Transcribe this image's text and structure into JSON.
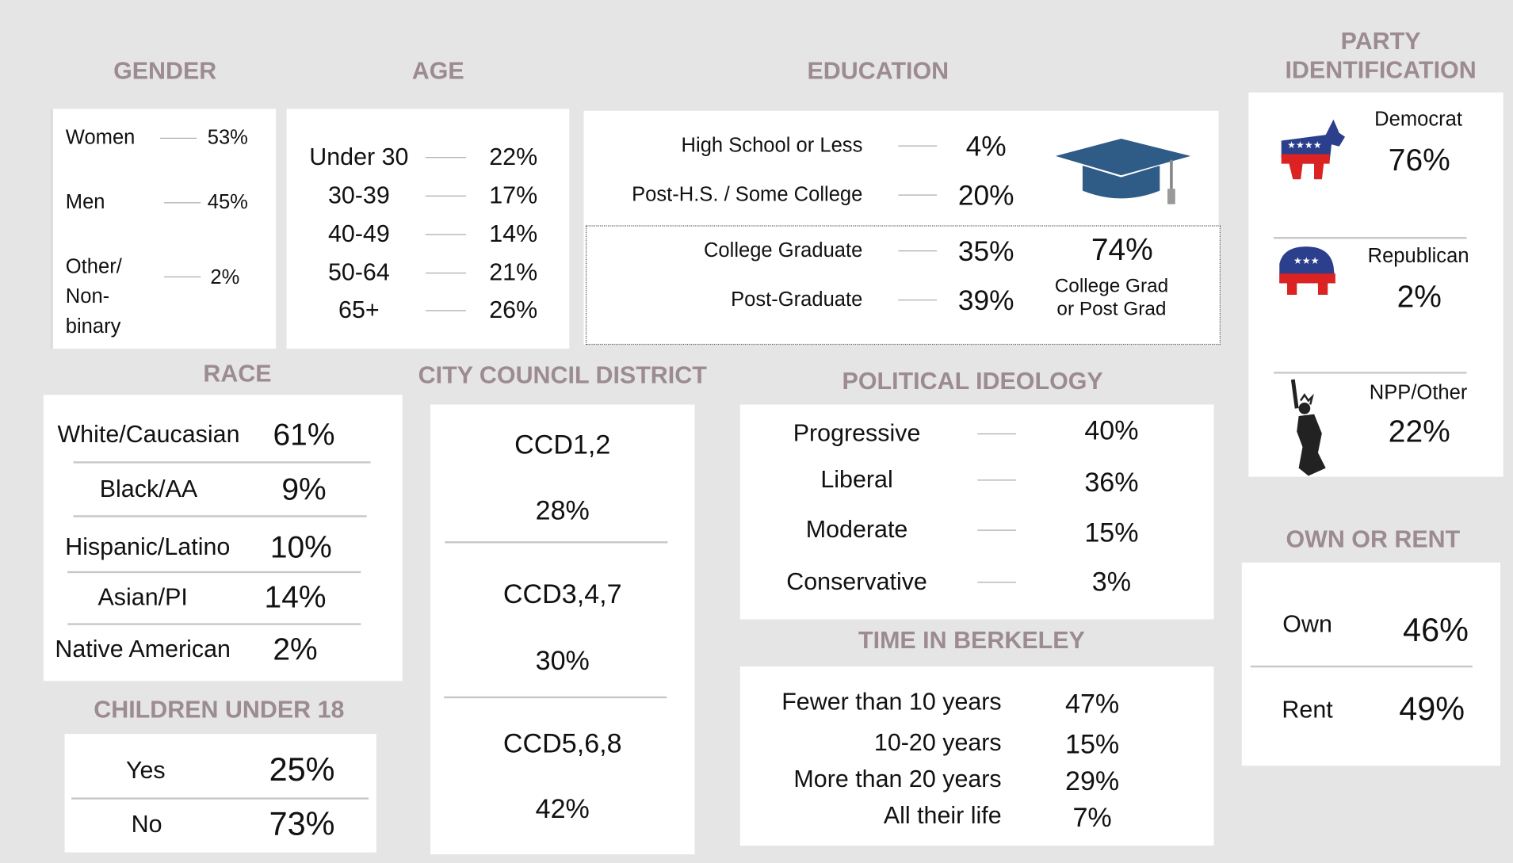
{
  "gender": {
    "title": "GENDER",
    "rows": [
      {
        "label": "Women",
        "value": "53%"
      },
      {
        "label": "Men",
        "value": "45%"
      },
      {
        "label": "Other/ Non-binary",
        "value": "2%"
      }
    ]
  },
  "age": {
    "title": "AGE",
    "rows": [
      {
        "label": "Under 30",
        "value": "22%"
      },
      {
        "label": "30-39",
        "value": "17%"
      },
      {
        "label": "40-49",
        "value": "14%"
      },
      {
        "label": "50-64",
        "value": "21%"
      },
      {
        "label": "65+",
        "value": "26%"
      }
    ]
  },
  "education": {
    "title": "EDUCATION",
    "rows": [
      {
        "label": "High School or Less",
        "value": "4%"
      },
      {
        "label": "Post-H.S. / Some College",
        "value": "20%"
      },
      {
        "label": "College Graduate",
        "value": "35%"
      },
      {
        "label": "Post-Graduate",
        "value": "39%"
      }
    ],
    "combined": {
      "value": "74%",
      "label": "College Grad or Post Grad"
    }
  },
  "party": {
    "title": "PARTY IDENTIFICATION",
    "rows": [
      {
        "label": "Democrat",
        "value": "76%"
      },
      {
        "label": "Republican",
        "value": "2%"
      },
      {
        "label": "NPP/Other",
        "value": "22%"
      }
    ]
  },
  "race": {
    "title": "RACE",
    "rows": [
      {
        "label": "White/Caucasian",
        "value": "61%"
      },
      {
        "label": "Black/AA",
        "value": "9%"
      },
      {
        "label": "Hispanic/Latino",
        "value": "10%"
      },
      {
        "label": "Asian/PI",
        "value": "14%"
      },
      {
        "label": "Native American",
        "value": "2%"
      }
    ]
  },
  "district": {
    "title": "CITY COUNCIL DISTRICT",
    "rows": [
      {
        "label": "CCD1,2",
        "value": "28%"
      },
      {
        "label": "CCD3,4,7",
        "value": "30%"
      },
      {
        "label": "CCD5,6,8",
        "value": "42%"
      }
    ]
  },
  "ideology": {
    "title": "POLITICAL IDEOLOGY",
    "rows": [
      {
        "label": "Progressive",
        "value": "40%"
      },
      {
        "label": "Liberal",
        "value": "36%"
      },
      {
        "label": "Moderate",
        "value": "15%"
      },
      {
        "label": "Conservative",
        "value": "3%"
      }
    ]
  },
  "children": {
    "title": "CHILDREN UNDER 18",
    "rows": [
      {
        "label": "Yes",
        "value": "25%"
      },
      {
        "label": "No",
        "value": "73%"
      }
    ]
  },
  "time": {
    "title": "TIME IN BERKELEY",
    "rows": [
      {
        "label": "Fewer than 10 years",
        "value": "47%"
      },
      {
        "label": "10-20 years",
        "value": "15%"
      },
      {
        "label": "More than 20 years",
        "value": "29%"
      },
      {
        "label": "All their life",
        "value": "7%"
      }
    ]
  },
  "tenure": {
    "title": "OWN OR RENT",
    "rows": [
      {
        "label": "Own",
        "value": "46%"
      },
      {
        "label": "Rent",
        "value": "49%"
      }
    ]
  }
}
